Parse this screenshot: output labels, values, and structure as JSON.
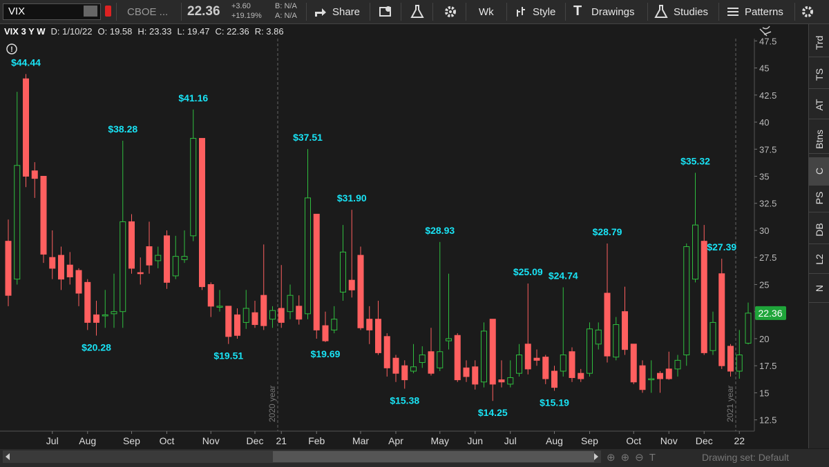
{
  "toolbar": {
    "symbol": "VIX",
    "exchange": "CBOE ...",
    "last": "22.36",
    "change": "+3.60",
    "change_pct": "+19.19%",
    "bid": "B: N/A",
    "ask": "A: N/A",
    "buttons": [
      "Share",
      "Wk",
      "Style",
      "Drawings",
      "Studies",
      "Patterns"
    ]
  },
  "info_bar": [
    "VIX 3 Y W",
    "D: 1/10/22",
    "O: 19.58",
    "H: 23.33",
    "L: 19.47",
    "C: 22.36",
    "R: 3.86"
  ],
  "chart": {
    "type": "candlestick",
    "categories": [
      null,
      null,
      null,
      null,
      null,
      "Jul",
      null,
      null,
      null,
      "Aug",
      null,
      null,
      null,
      null,
      "Sep",
      null,
      null,
      null,
      "Oct",
      null,
      null,
      null,
      null,
      "Nov",
      null,
      null,
      null,
      null,
      "Dec",
      null,
      null,
      "21",
      null,
      null,
      null,
      "Feb",
      null,
      null,
      null,
      null,
      "Mar",
      null,
      null,
      null,
      "Apr",
      null,
      null,
      null,
      null,
      "May",
      null,
      null,
      null,
      "Jun",
      null,
      null,
      null,
      "Jul",
      null,
      null,
      null,
      null,
      "Aug",
      null,
      null,
      null,
      "Sep",
      null,
      null,
      null,
      null,
      "Oct",
      null,
      null,
      null,
      "Nov",
      null,
      null,
      null,
      "Dec",
      null,
      null,
      null,
      "22",
      null
    ],
    "open": [
      29,
      25.5,
      44,
      35.5,
      35,
      27.5,
      27.7,
      26.8,
      26.3,
      25.2,
      22.2,
      22.1,
      22.3,
      22.5,
      30.8,
      26.1,
      28.5,
      27.2,
      29.5,
      25.8,
      27.3,
      29.5,
      38.5,
      25,
      22.9,
      23,
      22.2,
      21.5,
      22.4,
      24,
      21.8,
      22.8,
      22.5,
      23,
      22.3,
      31.5,
      21.2,
      20.8,
      24.3,
      25.4,
      27.7,
      21.8,
      21.8,
      20.2,
      18.2,
      17.5,
      17,
      17.8,
      18.8,
      17.3,
      19.8,
      20.3,
      17.3,
      17.4,
      16,
      21.8,
      16.2,
      15.8,
      16.8,
      19.5,
      18.2,
      18.3,
      17,
      17,
      18.8,
      16.8,
      16.8,
      19.5,
      24.2,
      18.3,
      22.5,
      19.5,
      17.5,
      16.2,
      16.8,
      17.2,
      17.2,
      18.5,
      25.5,
      29,
      18.9,
      26,
      19.3,
      17,
      19.58
    ],
    "high": [
      31,
      42.8,
      44.44,
      36.3,
      35,
      30,
      28.5,
      28,
      26.5,
      25.5,
      23.5,
      24.5,
      26,
      38.28,
      31.5,
      27.5,
      30.8,
      28.5,
      30,
      29.5,
      30,
      41.16,
      38.5,
      25.2,
      24.5,
      23,
      22.8,
      24.5,
      23.5,
      28.7,
      23,
      26.8,
      25,
      24,
      37.51,
      31.5,
      22.5,
      23,
      30.5,
      31.9,
      28.5,
      23,
      23.5,
      20.5,
      18.5,
      18,
      19.5,
      19.3,
      21,
      28.93,
      26,
      20.5,
      18,
      18,
      21.5,
      21.8,
      18,
      18,
      19.5,
      25.09,
      19,
      18.5,
      17.5,
      24.74,
      19.2,
      17.2,
      21.5,
      21.5,
      28.79,
      22,
      24.8,
      19.5,
      18,
      18,
      17,
      18.8,
      18.5,
      28.8,
      35.32,
      30.5,
      22.5,
      27.39,
      19.5,
      20.8,
      23.33
    ],
    "low": [
      23,
      25,
      34,
      33,
      27,
      25.5,
      24.5,
      25,
      23,
      20.8,
      20.28,
      21,
      21,
      21,
      26,
      25,
      26,
      26.5,
      24.6,
      25.5,
      27,
      29,
      24.5,
      22,
      22.5,
      19.51,
      20,
      20.9,
      21,
      20.8,
      21,
      21,
      21.8,
      21.3,
      21.8,
      20,
      19.69,
      20.5,
      23.5,
      23.8,
      20.8,
      19.5,
      18.5,
      16.5,
      16,
      15.38,
      16.8,
      17.3,
      16.6,
      17,
      19,
      16,
      16,
      15.3,
      15.5,
      14.25,
      15.5,
      15.5,
      16.5,
      16.7,
      17.5,
      15.8,
      15.19,
      16.5,
      16,
      16,
      16.5,
      19,
      17.8,
      18,
      18.5,
      15.8,
      15,
      15,
      15,
      16.2,
      16.5,
      17.5,
      25.2,
      18.5,
      18.5,
      17.2,
      16.5,
      16.3,
      19.47
    ],
    "close": [
      24,
      36,
      35,
      34.8,
      27.8,
      26.5,
      25.5,
      25.7,
      24.2,
      21.5,
      21.5,
      22.2,
      22.5,
      30.8,
      26.5,
      26,
      26.8,
      27.7,
      25.2,
      27.6,
      27.6,
      38.5,
      24.8,
      23,
      23,
      20.2,
      20.3,
      22.8,
      21.3,
      21.2,
      22.6,
      21.5,
      24,
      21.8,
      33,
      20.8,
      19.8,
      21.8,
      28,
      24.5,
      21,
      20.8,
      18.7,
      17.3,
      16.8,
      16.2,
      17.4,
      18.5,
      16.8,
      18.8,
      20,
      16.2,
      16.5,
      15.8,
      20.7,
      15.8,
      16,
      16.4,
      18.5,
      17.2,
      18,
      16.3,
      15.5,
      18.5,
      16.4,
      16.3,
      20.9,
      20.8,
      18.4,
      21.3,
      19,
      16,
      15.3,
      16.3,
      16.3,
      16.3,
      18,
      28.5,
      30.5,
      18.7,
      21.5,
      17.5,
      17,
      18.5,
      22.36
    ],
    "high_labels": [
      null,
      null,
      "$44.44",
      null,
      null,
      null,
      null,
      null,
      null,
      null,
      null,
      null,
      null,
      "$38.28",
      null,
      null,
      null,
      null,
      null,
      null,
      null,
      "$41.16",
      null,
      null,
      null,
      null,
      null,
      null,
      null,
      null,
      null,
      null,
      null,
      null,
      "$37.51",
      null,
      null,
      null,
      null,
      "$31.90",
      null,
      null,
      null,
      null,
      null,
      null,
      null,
      null,
      null,
      "$28.93",
      null,
      null,
      null,
      null,
      null,
      null,
      null,
      null,
      null,
      "$25.09",
      null,
      null,
      null,
      "$24.74",
      null,
      null,
      null,
      null,
      "$28.79",
      null,
      null,
      null,
      null,
      null,
      null,
      null,
      null,
      null,
      "$35.32",
      null,
      null,
      "$27.39",
      null,
      null,
      null
    ],
    "low_labels": [
      null,
      null,
      null,
      null,
      null,
      null,
      null,
      null,
      null,
      null,
      "$20.28",
      null,
      null,
      null,
      null,
      null,
      null,
      null,
      null,
      null,
      null,
      null,
      null,
      null,
      null,
      "$19.51",
      null,
      null,
      null,
      null,
      null,
      null,
      null,
      null,
      null,
      null,
      "$19.69",
      null,
      null,
      null,
      null,
      null,
      null,
      null,
      null,
      "$15.38",
      null,
      null,
      null,
      null,
      null,
      null,
      null,
      null,
      null,
      "$14.25",
      null,
      null,
      null,
      null,
      null,
      null,
      "$15.19",
      null,
      null,
      null,
      null,
      null,
      null,
      null,
      null,
      null,
      null,
      null,
      null,
      null,
      null,
      null,
      null,
      null,
      null,
      null,
      null,
      null,
      null,
      null
    ],
    "ylim": [
      11.46,
      47.71
    ],
    "yticks": [
      12.5,
      15,
      17.5,
      20,
      22.5,
      25,
      27.5,
      30,
      32.5,
      35,
      37.5,
      40,
      42.5,
      45,
      47.5
    ],
    "up_color": "#2fbf3f",
    "down_color": "#ff5f5f",
    "label_color": "#19e3f5",
    "year_markers": [
      "2020 year",
      "2021 year"
    ]
  },
  "sidebar_tabs": [
    "Trd",
    "TS",
    "AT",
    "Btns",
    "C",
    "PS",
    "DB",
    "L2",
    "N"
  ],
  "footer": {
    "drawing_set": "Drawing set: Default"
  }
}
